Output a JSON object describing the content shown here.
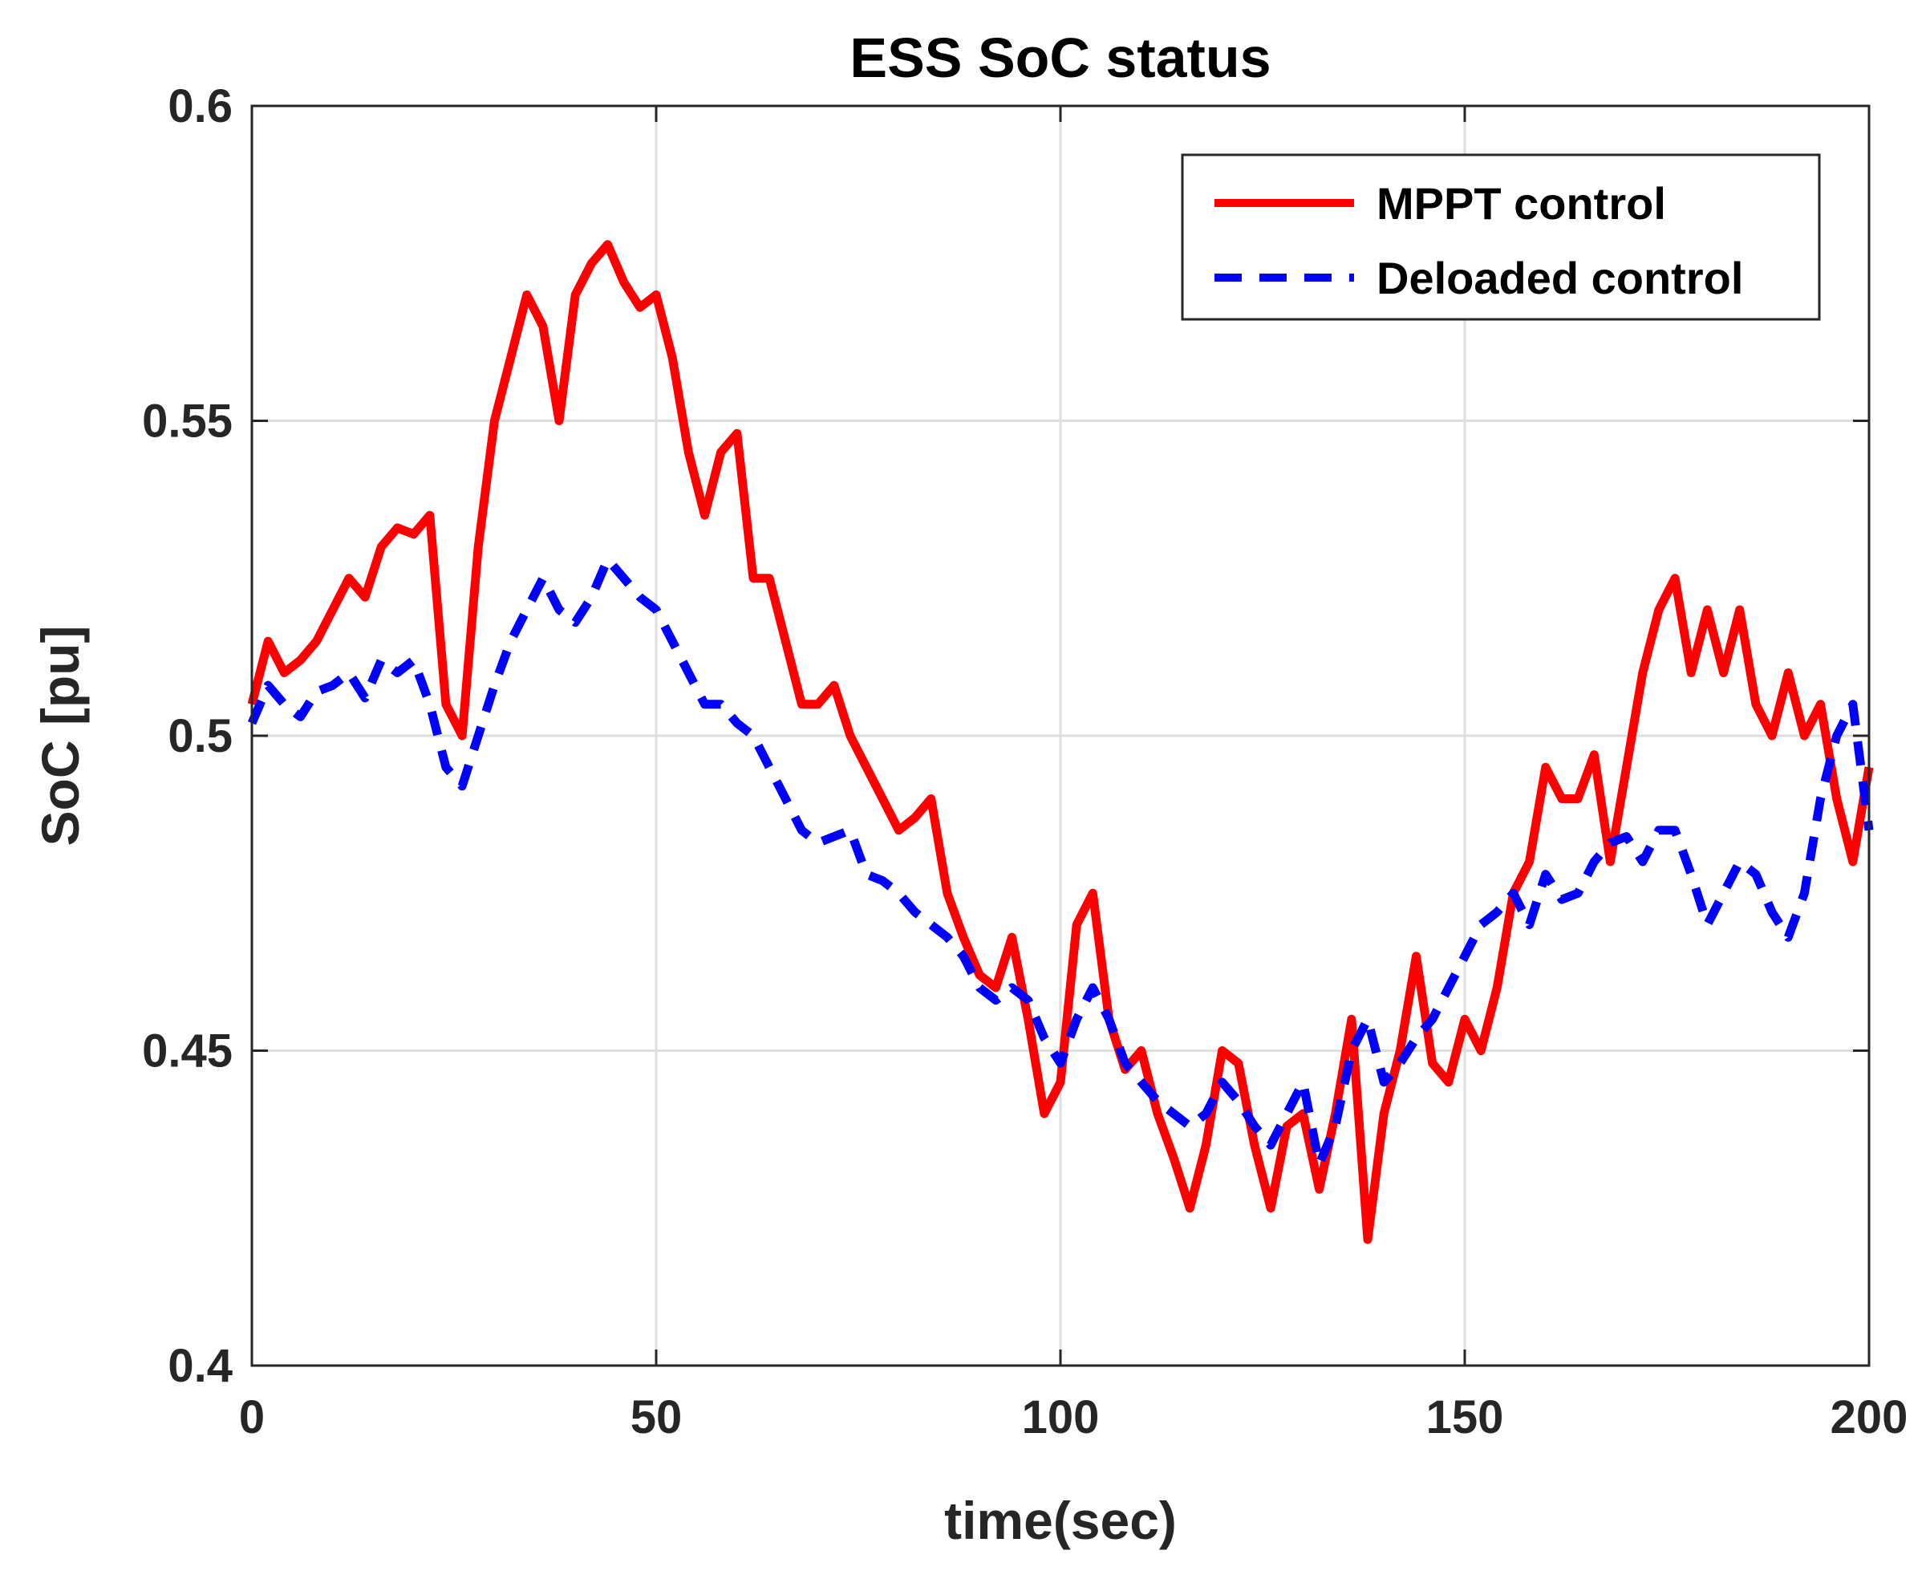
{
  "chart_data": {
    "type": "line",
    "title": "ESS SoC status",
    "xlabel": "time(sec)",
    "ylabel": "SoC [pu]",
    "xlim": [
      0,
      200
    ],
    "ylim": [
      0.4,
      0.6
    ],
    "xticks": [
      0,
      50,
      100,
      150,
      200
    ],
    "xtick_labels": [
      "0",
      "50",
      "100",
      "150",
      "200"
    ],
    "yticks": [
      0.4,
      0.45,
      0.5,
      0.55,
      0.6
    ],
    "ytick_labels": [
      "0.4",
      "0.45",
      "0.5",
      "0.55",
      "0.6"
    ],
    "grid": true,
    "legend_position": "top-right",
    "series": [
      {
        "name": "MPPT control",
        "color": "#ff0000",
        "style": "solid",
        "x": [
          0,
          2,
          4,
          6,
          8,
          10,
          12,
          14,
          16,
          18,
          20,
          22,
          24,
          26,
          28,
          30,
          32,
          34,
          36,
          38,
          40,
          42,
          44,
          46,
          48,
          50,
          52,
          54,
          56,
          58,
          60,
          62,
          64,
          66,
          68,
          70,
          72,
          74,
          76,
          78,
          80,
          82,
          84,
          86,
          88,
          90,
          92,
          94,
          96,
          98,
          100,
          102,
          104,
          106,
          108,
          110,
          112,
          114,
          116,
          118,
          120,
          122,
          124,
          126,
          128,
          130,
          132,
          134,
          136,
          138,
          140,
          142,
          144,
          146,
          148,
          150,
          152,
          154,
          156,
          158,
          160,
          162,
          164,
          166,
          168,
          170,
          172,
          174,
          176,
          178,
          180,
          182,
          184,
          186,
          188,
          190,
          192,
          194,
          196,
          198,
          200
        ],
        "values": [
          0.505,
          0.515,
          0.51,
          0.512,
          0.515,
          0.52,
          0.525,
          0.522,
          0.53,
          0.533,
          0.532,
          0.535,
          0.505,
          0.5,
          0.53,
          0.55,
          0.56,
          0.57,
          0.565,
          0.55,
          0.57,
          0.575,
          0.578,
          0.572,
          0.568,
          0.57,
          0.56,
          0.545,
          0.535,
          0.545,
          0.548,
          0.525,
          0.525,
          0.515,
          0.505,
          0.505,
          0.508,
          0.5,
          0.495,
          0.49,
          0.485,
          0.487,
          0.49,
          0.475,
          0.468,
          0.462,
          0.46,
          0.468,
          0.455,
          0.44,
          0.445,
          0.47,
          0.475,
          0.455,
          0.447,
          0.45,
          0.44,
          0.433,
          0.425,
          0.435,
          0.45,
          0.448,
          0.435,
          0.425,
          0.438,
          0.44,
          0.428,
          0.44,
          0.455,
          0.42,
          0.44,
          0.45,
          0.465,
          0.448,
          0.445,
          0.455,
          0.45,
          0.46,
          0.475,
          0.48,
          0.495,
          0.49,
          0.49,
          0.497,
          0.48,
          0.495,
          0.51,
          0.52,
          0.525,
          0.51,
          0.52,
          0.51,
          0.52,
          0.505,
          0.5,
          0.51,
          0.5,
          0.505,
          0.49,
          0.48,
          0.495
        ]
      },
      {
        "name": "Deloaded control",
        "color": "#0000ff",
        "style": "dashed",
        "x": [
          0,
          2,
          4,
          6,
          8,
          10,
          12,
          14,
          16,
          18,
          20,
          22,
          24,
          26,
          28,
          30,
          32,
          34,
          36,
          38,
          40,
          42,
          44,
          46,
          48,
          50,
          52,
          54,
          56,
          58,
          60,
          62,
          64,
          66,
          68,
          70,
          72,
          74,
          76,
          78,
          80,
          82,
          84,
          86,
          88,
          90,
          92,
          94,
          96,
          98,
          100,
          102,
          104,
          106,
          108,
          110,
          112,
          114,
          116,
          118,
          120,
          122,
          124,
          126,
          128,
          130,
          132,
          134,
          136,
          138,
          140,
          142,
          144,
          146,
          148,
          150,
          152,
          154,
          156,
          158,
          160,
          162,
          164,
          166,
          168,
          170,
          172,
          174,
          176,
          178,
          180,
          182,
          184,
          186,
          188,
          190,
          192,
          194,
          196,
          198,
          200
        ],
        "values": [
          0.502,
          0.508,
          0.505,
          0.503,
          0.507,
          0.508,
          0.51,
          0.506,
          0.512,
          0.51,
          0.512,
          0.505,
          0.495,
          0.492,
          0.5,
          0.508,
          0.515,
          0.52,
          0.525,
          0.52,
          0.518,
          0.522,
          0.528,
          0.525,
          0.522,
          0.52,
          0.515,
          0.51,
          0.505,
          0.505,
          0.502,
          0.5,
          0.495,
          0.49,
          0.485,
          0.483,
          0.484,
          0.485,
          0.478,
          0.477,
          0.475,
          0.472,
          0.47,
          0.468,
          0.465,
          0.46,
          0.458,
          0.46,
          0.458,
          0.452,
          0.448,
          0.455,
          0.46,
          0.455,
          0.448,
          0.445,
          0.442,
          0.44,
          0.438,
          0.44,
          0.445,
          0.442,
          0.438,
          0.435,
          0.44,
          0.445,
          0.432,
          0.438,
          0.45,
          0.455,
          0.445,
          0.448,
          0.452,
          0.455,
          0.46,
          0.465,
          0.47,
          0.472,
          0.475,
          0.47,
          0.478,
          0.474,
          0.475,
          0.48,
          0.483,
          0.484,
          0.48,
          0.485,
          0.485,
          0.478,
          0.47,
          0.475,
          0.48,
          0.478,
          0.472,
          0.468,
          0.475,
          0.49,
          0.5,
          0.505,
          0.485
        ]
      }
    ]
  }
}
